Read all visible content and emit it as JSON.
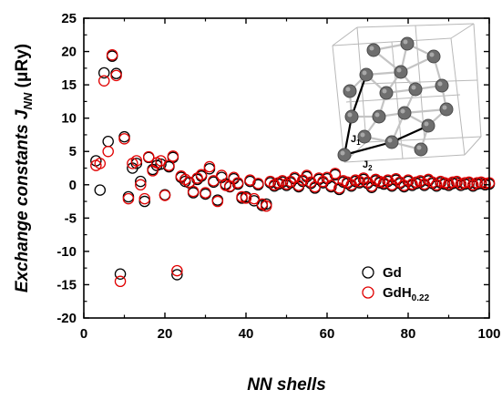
{
  "chart_data": {
    "type": "scatter",
    "xlabel": "NN shells",
    "ylabel_main": "Exchange constants J",
    "ylabel_sub": "NN",
    "ylabel_unit": " (μRy)",
    "xlim": [
      0,
      100
    ],
    "ylim": [
      -20,
      25
    ],
    "xticks": [
      0,
      20,
      40,
      60,
      80,
      100
    ],
    "yticks": [
      -20,
      -15,
      -10,
      -5,
      0,
      5,
      10,
      15,
      20,
      25
    ],
    "grid": false,
    "legend_position": "bottom-right",
    "inset_labels": [
      "J",
      "1",
      "J",
      "2"
    ],
    "series": [
      {
        "name": "Gd",
        "name_sub": "",
        "marker": "open-circle",
        "color": "#000000",
        "x": [
          3,
          4,
          5,
          6,
          7,
          8,
          9,
          10,
          11,
          12,
          13,
          14,
          15,
          16,
          17,
          18,
          19,
          20,
          21,
          22,
          23,
          24,
          25,
          26,
          27,
          28,
          29,
          30,
          31,
          32,
          33,
          34,
          35,
          36,
          37,
          38,
          39,
          40,
          41,
          42,
          43,
          44,
          45,
          46,
          47,
          48,
          49,
          50,
          51,
          52,
          53,
          54,
          55,
          56,
          57,
          58,
          59,
          60,
          61,
          62,
          63,
          64,
          65,
          66,
          67,
          68,
          69,
          70,
          71,
          72,
          73,
          74,
          75,
          76,
          77,
          78,
          79,
          80,
          81,
          82,
          83,
          84,
          85,
          86,
          87,
          88,
          89,
          90,
          91,
          92,
          93,
          94,
          95,
          96,
          97,
          98,
          99,
          100
        ],
        "y": [
          3.6,
          -0.8,
          16.8,
          6.5,
          19.3,
          16.7,
          -13.4,
          7.2,
          -1.8,
          2.5,
          3.2,
          0.5,
          -2.5,
          4.1,
          2.3,
          2.9,
          3.1,
          -1.5,
          2.7,
          4.1,
          -13.5,
          1.1,
          0.5,
          0.3,
          -1.2,
          0.8,
          1.3,
          -1.4,
          2.4,
          0.4,
          -2.3,
          1.1,
          0.1,
          -0.3,
          0.9,
          0.1,
          -2.0,
          -1.8,
          0.5,
          -2.4,
          0.0,
          -3.1,
          -2.9,
          0.3,
          -0.2,
          0.1,
          0.4,
          -0.1,
          0.3,
          0.9,
          -0.3,
          0.5,
          1.2,
          0.2,
          -0.5,
          0.8,
          0.3,
          0.9,
          -0.3,
          1.5,
          -0.7,
          0.4,
          0.2,
          -0.2,
          0.5,
          0.3,
          0.8,
          0.2,
          -0.4,
          0.6,
          0.3,
          0.1,
          0.5,
          -0.2,
          0.7,
          0.2,
          -0.3,
          0.5,
          -0.1,
          0.2,
          0.4,
          -0.1,
          0.6,
          0.2,
          -0.2,
          0.3,
          0.1,
          -0.1,
          0.2,
          0.3,
          -0.1,
          0.1,
          0.2,
          -0.2,
          0.1,
          0.2,
          0.0,
          0.1
        ]
      },
      {
        "name": "GdH",
        "name_sub": "0.22",
        "marker": "open-circle",
        "color": "#e00000",
        "x": [
          3,
          4,
          5,
          6,
          7,
          8,
          9,
          10,
          11,
          12,
          13,
          14,
          15,
          16,
          17,
          18,
          19,
          20,
          21,
          22,
          23,
          24,
          25,
          26,
          27,
          28,
          29,
          30,
          31,
          32,
          33,
          34,
          35,
          36,
          37,
          38,
          39,
          40,
          41,
          42,
          43,
          44,
          45,
          46,
          47,
          48,
          49,
          50,
          51,
          52,
          53,
          54,
          55,
          56,
          57,
          58,
          59,
          60,
          61,
          62,
          63,
          64,
          65,
          66,
          67,
          68,
          69,
          70,
          71,
          72,
          73,
          74,
          75,
          76,
          77,
          78,
          79,
          80,
          81,
          82,
          83,
          84,
          85,
          86,
          87,
          88,
          89,
          90,
          91,
          92,
          93,
          94,
          95,
          96,
          97,
          98,
          99,
          100
        ],
        "y": [
          2.9,
          3.2,
          15.6,
          5.0,
          19.5,
          16.4,
          -14.5,
          6.9,
          -2.1,
          3.2,
          3.6,
          0.0,
          -2.1,
          4.2,
          2.1,
          3.3,
          3.6,
          -1.6,
          2.9,
          4.3,
          -12.9,
          1.3,
          0.8,
          0.4,
          -1.0,
          1.0,
          1.5,
          -1.2,
          2.7,
          0.6,
          -2.5,
          1.4,
          -0.1,
          -0.2,
          1.1,
          0.3,
          -1.8,
          -2.0,
          0.7,
          -2.1,
          0.2,
          -2.9,
          -3.2,
          0.5,
          0.0,
          0.3,
          0.6,
          0.1,
          0.5,
          1.1,
          -0.1,
          0.7,
          1.4,
          0.4,
          -0.3,
          1.0,
          0.5,
          1.1,
          -0.1,
          1.7,
          -0.5,
          0.6,
          0.4,
          0.0,
          0.7,
          0.5,
          1.0,
          0.4,
          -0.2,
          0.8,
          0.5,
          0.3,
          0.7,
          0.0,
          0.9,
          0.4,
          -0.1,
          0.7,
          0.1,
          0.4,
          0.6,
          0.1,
          0.8,
          0.4,
          0.0,
          0.5,
          0.3,
          0.1,
          0.4,
          0.5,
          0.1,
          0.3,
          0.4,
          0.0,
          0.3,
          0.4,
          0.2,
          0.3
        ]
      }
    ]
  }
}
